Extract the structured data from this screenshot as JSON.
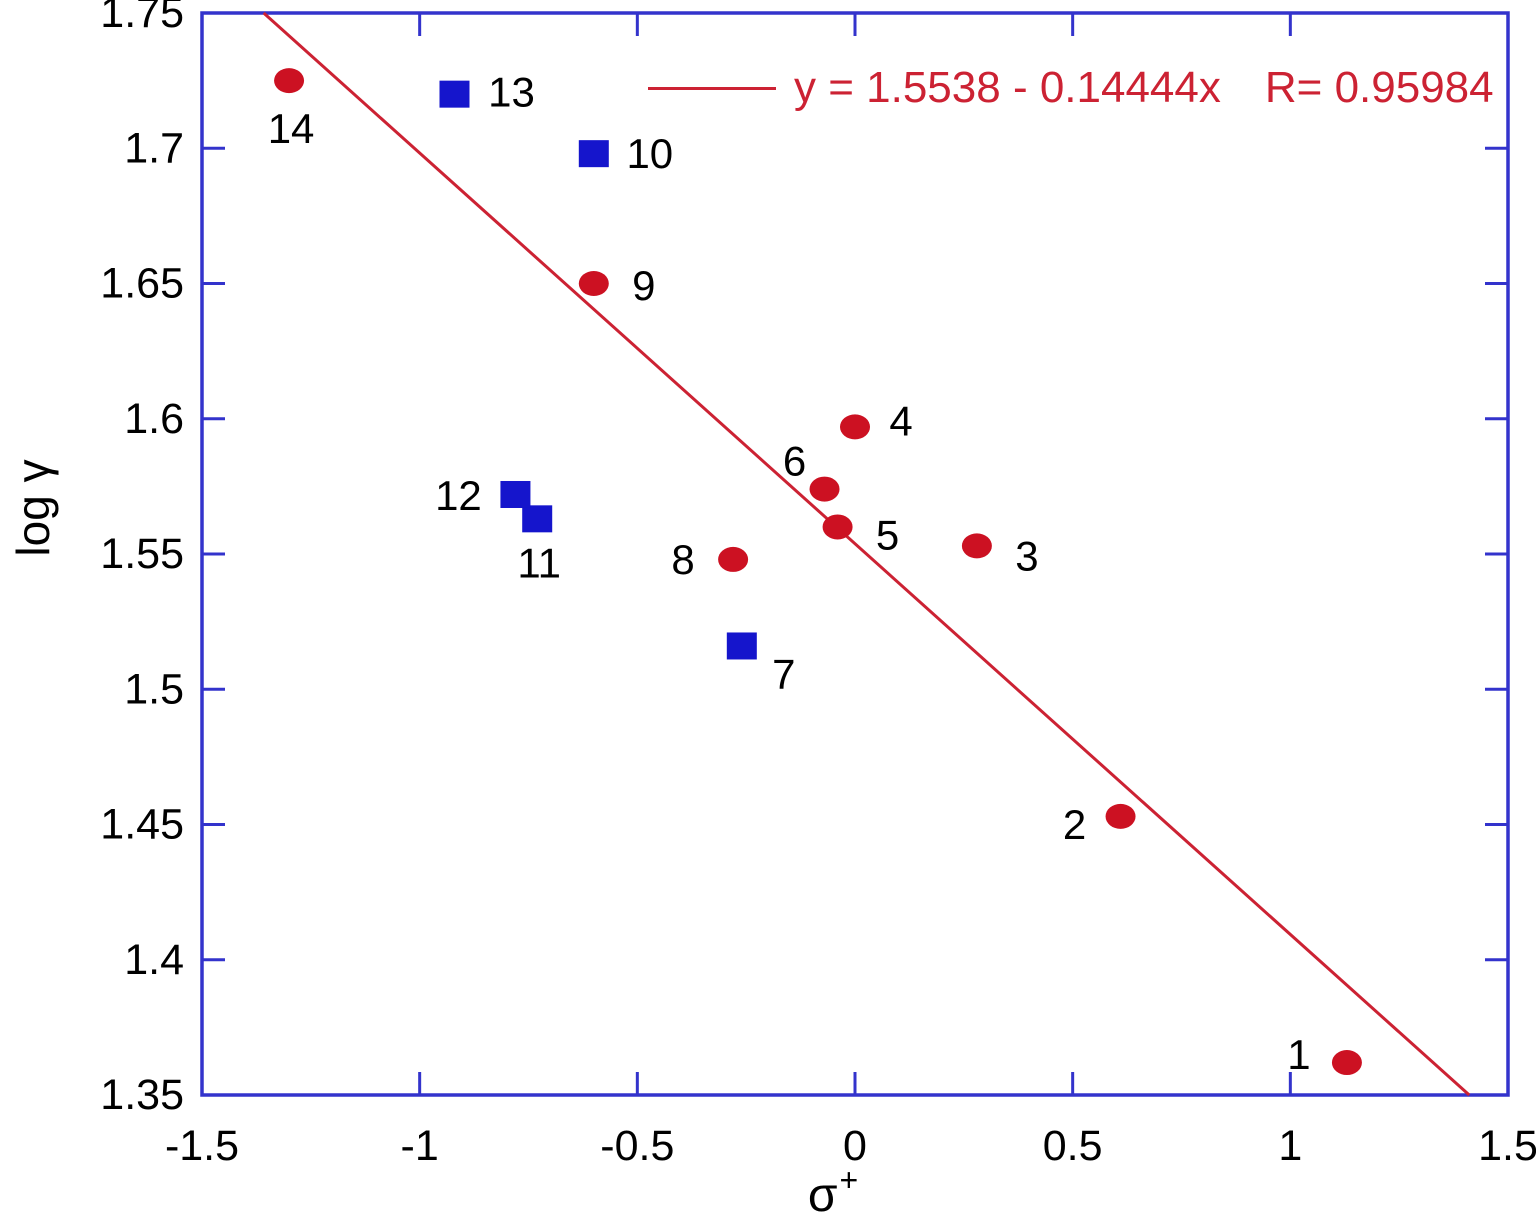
{
  "chart_data": {
    "type": "scatter",
    "title": "",
    "x_axis": {
      "label_base": "σ",
      "label_sup": "+",
      "min": -1.5,
      "max": 1.5,
      "tick_values": [
        -1.5,
        -1,
        -0.5,
        0,
        0.5,
        1,
        1.5
      ],
      "tick_labels": [
        "-1.5",
        "-1",
        "-0.5",
        "0",
        "0.5",
        "1",
        "1.5"
      ]
    },
    "y_axis": {
      "label": "log γ",
      "min": 1.35,
      "max": 1.75,
      "tick_values": [
        1.35,
        1.4,
        1.45,
        1.5,
        1.55,
        1.6,
        1.65,
        1.7,
        1.75
      ],
      "tick_labels": [
        "1.35",
        "1.4",
        "1.45",
        "1.5",
        "1.55",
        "1.6",
        "1.65",
        "1.7",
        "1.75"
      ]
    },
    "trendline": {
      "equation": "y = 1.5538 - 0.14444x",
      "r_label": "R= 0.95984",
      "intercept": 1.5538,
      "slope": -0.14444,
      "color": "#CC2233"
    },
    "frame_color": "#3333CC",
    "grid": false,
    "legend_position": "top-right-inside",
    "series": [
      {
        "name": "red-circles",
        "marker": "circle",
        "color": "#CC1122",
        "points": [
          {
            "label": "1",
            "x": 1.13,
            "y": 1.362,
            "label_dx": -48,
            "label_dy": -8
          },
          {
            "label": "2",
            "x": 0.61,
            "y": 1.453,
            "label_dx": -46,
            "label_dy": 8
          },
          {
            "label": "3",
            "x": 0.28,
            "y": 1.553,
            "label_dx": 50,
            "label_dy": 10
          },
          {
            "label": "4",
            "x": 0.0,
            "y": 1.597,
            "label_dx": 46,
            "label_dy": -6
          },
          {
            "label": "5",
            "x": -0.04,
            "y": 1.56,
            "label_dx": 50,
            "label_dy": 8
          },
          {
            "label": "6",
            "x": -0.07,
            "y": 1.574,
            "label_dx": -30,
            "label_dy": -28
          },
          {
            "label": "8",
            "x": -0.28,
            "y": 1.548,
            "label_dx": -50,
            "label_dy": 0
          },
          {
            "label": "9",
            "x": -0.6,
            "y": 1.65,
            "label_dx": 50,
            "label_dy": 2
          },
          {
            "label": "14",
            "x": -1.3,
            "y": 1.725,
            "label_dx": 2,
            "label_dy": 48
          }
        ]
      },
      {
        "name": "blue-squares",
        "marker": "square",
        "color": "#1515CC",
        "points": [
          {
            "label": "7",
            "x": -0.26,
            "y": 1.516,
            "label_dx": 42,
            "label_dy": 28
          },
          {
            "label": "10",
            "x": -0.6,
            "y": 1.698,
            "label_dx": 56,
            "label_dy": 0
          },
          {
            "label": "11",
            "x": -0.73,
            "y": 1.563,
            "label_dx": 2,
            "label_dy": 44
          },
          {
            "label": "12",
            "x": -0.78,
            "y": 1.572,
            "label_dx": -57,
            "label_dy": 1
          },
          {
            "label": "13",
            "x": -0.92,
            "y": 1.72,
            "label_dx": 57,
            "label_dy": -2
          }
        ]
      }
    ]
  }
}
